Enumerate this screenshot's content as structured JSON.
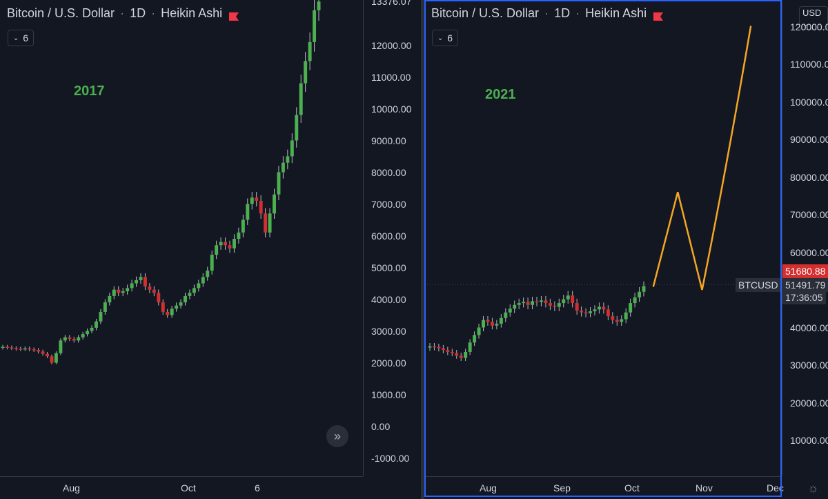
{
  "left_chart": {
    "legend": {
      "symbol": "Bitcoin / U.S. Dollar",
      "interval": "1D",
      "style": "Heikin Ashi"
    },
    "indicator_count": "6",
    "year_label": "2017",
    "price_axis_labels": [
      "13376.07",
      "12000.00",
      "11000.00",
      "10000.00",
      "9000.00",
      "8000.00",
      "7000.00",
      "6000.00",
      "5000.00",
      "4000.00",
      "3000.00",
      "2000.00",
      "1000.00",
      "0.00",
      "-1000.00"
    ],
    "time_axis_labels": [
      "Aug",
      "Oct",
      "6"
    ]
  },
  "right_chart": {
    "legend": {
      "symbol": "Bitcoin / U.S. Dollar",
      "interval": "1D",
      "style": "Heikin Ashi"
    },
    "indicator_count": "6",
    "year_label": "2021",
    "currency": "USD",
    "price_axis_labels": [
      "120000.00",
      "110000.00",
      "100000.00",
      "90000.00",
      "80000.00",
      "70000.00",
      "60000.00",
      "40000.00",
      "30000.00",
      "20000.00",
      "10000.00"
    ],
    "time_axis_labels": [
      "Aug",
      "Sep",
      "Oct",
      "Nov",
      "Dec"
    ],
    "symbol_tag": "BTCUSD",
    "last_price": "51680.88",
    "bid_price": "51491.79",
    "countdown": "17:36:05"
  },
  "colors": {
    "bull": "#4caf50",
    "bear": "#d32f2f",
    "projection": "#f5a623",
    "accent": "#2962ff",
    "background": "#131722"
  },
  "chart_data": [
    {
      "type": "candlestick",
      "title": "2017",
      "ylim": [
        -1500,
        13500
      ],
      "series": [
        {
          "name": "Bitcoin / U.S. Dollar",
          "values": [
            2500,
            2480,
            2460,
            2440,
            2430,
            2450,
            2420,
            2400,
            2350,
            2280,
            2200,
            2000,
            2300,
            2700,
            2800,
            2750,
            2700,
            2800,
            2900,
            3000,
            3100,
            3300,
            3600,
            3900,
            4100,
            4300,
            4200,
            4250,
            4350,
            4500,
            4600,
            4700,
            4400,
            4300,
            4200,
            3900,
            3600,
            3500,
            3700,
            3800,
            3900,
            4100,
            4200,
            4350,
            4500,
            4700,
            4900,
            5400,
            5700,
            5800,
            5700,
            5600,
            5900,
            6100,
            6500,
            7000,
            7200,
            7100,
            6700,
            6100,
            6700,
            7300,
            8000,
            8300,
            8500,
            9000,
            9800,
            10800,
            11500,
            12100,
            13100,
            13376.07
          ]
        }
      ]
    },
    {
      "type": "candlestick",
      "title": "2021",
      "ylim": [
        0,
        125000
      ],
      "series": [
        {
          "name": "Bitcoin / U.S. Dollar",
          "values": [
            35000,
            34800,
            34500,
            34000,
            33500,
            33200,
            32500,
            31900,
            33500,
            36000,
            38000,
            40000,
            42000,
            41500,
            40500,
            41000,
            42500,
            44000,
            45000,
            46000,
            46500,
            46800,
            46000,
            47000,
            46800,
            47200,
            46500,
            45800,
            45500,
            46500,
            47500,
            48500,
            46500,
            44500,
            44000,
            43800,
            44300,
            44800,
            45500,
            44800,
            43000,
            42000,
            41500,
            42200,
            44000,
            46500,
            48000,
            49500,
            51000
          ]
        },
        {
          "name": "Projection",
          "values": [
            [
              0,
              51000
            ],
            [
              5,
              76000
            ],
            [
              10,
              50000
            ],
            [
              20,
              120000
            ]
          ]
        }
      ]
    }
  ]
}
